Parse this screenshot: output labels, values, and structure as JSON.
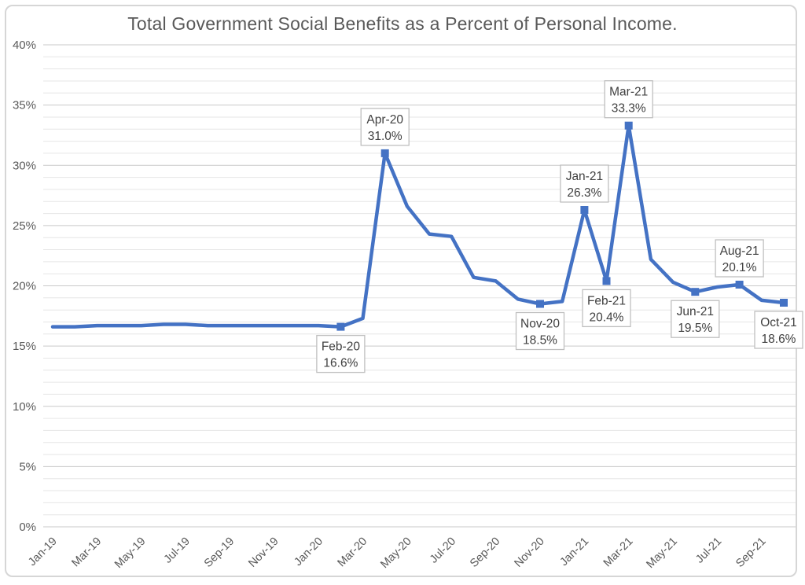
{
  "chart_data": {
    "type": "line",
    "title": "Total Government Social Benefits as a Percent of Personal Income.",
    "xlabel": "",
    "ylabel": "",
    "x": [
      "Jan-19",
      "Feb-19",
      "Mar-19",
      "Apr-19",
      "May-19",
      "Jun-19",
      "Jul-19",
      "Aug-19",
      "Sep-19",
      "Oct-19",
      "Nov-19",
      "Dec-19",
      "Jan-20",
      "Feb-20",
      "Mar-20",
      "Apr-20",
      "May-20",
      "Jun-20",
      "Jul-20",
      "Aug-20",
      "Sep-20",
      "Oct-20",
      "Nov-20",
      "Dec-20",
      "Jan-21",
      "Feb-21",
      "Mar-21",
      "Apr-21",
      "May-21",
      "Jun-21",
      "Jul-21",
      "Aug-21",
      "Sep-21",
      "Oct-21"
    ],
    "series": [
      {
        "name": "Total government social benefits as a percent of personal income",
        "values": [
          16.6,
          16.6,
          16.7,
          16.7,
          16.7,
          16.8,
          16.8,
          16.7,
          16.7,
          16.7,
          16.7,
          16.7,
          16.7,
          16.6,
          17.3,
          31.0,
          26.6,
          24.3,
          24.1,
          20.7,
          20.4,
          18.9,
          18.5,
          18.7,
          26.3,
          20.4,
          33.3,
          22.2,
          20.3,
          19.5,
          19.9,
          20.1,
          18.8,
          18.6
        ]
      }
    ],
    "ylim": [
      0,
      40
    ],
    "y_major_step": 5,
    "y_minor_step": 1,
    "y_tick_labels": [
      "0%",
      "5%",
      "10%",
      "15%",
      "20%",
      "25%",
      "30%",
      "35%",
      "40%"
    ],
    "x_tick_labels": [
      "Jan-19",
      "Mar-19",
      "May-19",
      "Jul-19",
      "Sep-19",
      "Nov-19",
      "Jan-20",
      "Mar-20",
      "May-20",
      "Jul-20",
      "Sep-20",
      "Nov-20",
      "Jan-21",
      "Mar-21",
      "May-21",
      "Jul-21",
      "Sep-21"
    ],
    "x_tick_every": 2,
    "grid": "horizontal major and minor gridlines",
    "legend": "none",
    "callouts": [
      {
        "date": "Feb-20",
        "value": "16.6%",
        "placement": "below"
      },
      {
        "date": "Apr-20",
        "value": "31.0%",
        "placement": "above"
      },
      {
        "date": "Nov-20",
        "value": "18.5%",
        "placement": "below"
      },
      {
        "date": "Jan-21",
        "value": "26.3%",
        "placement": "above"
      },
      {
        "date": "Feb-21",
        "value": "20.4%",
        "placement": "below"
      },
      {
        "date": "Mar-21",
        "value": "33.3%",
        "placement": "above"
      },
      {
        "date": "Jun-21",
        "value": "19.5%",
        "placement": "below"
      },
      {
        "date": "Aug-21",
        "value": "20.1%",
        "placement": "above"
      },
      {
        "date": "Oct-21",
        "value": "18.6%",
        "placement": "below"
      }
    ]
  },
  "colors": {
    "line": "#4472c4",
    "marker": "#4472c4",
    "grid_major": "#c9c9c9",
    "grid_minor": "#e6e6e6",
    "axis_text": "#595959",
    "title_text": "#595959",
    "callout_border": "#bfbfbf",
    "callout_text": "#404040",
    "frame_border": "#d6d6d6",
    "background": "#ffffff"
  }
}
